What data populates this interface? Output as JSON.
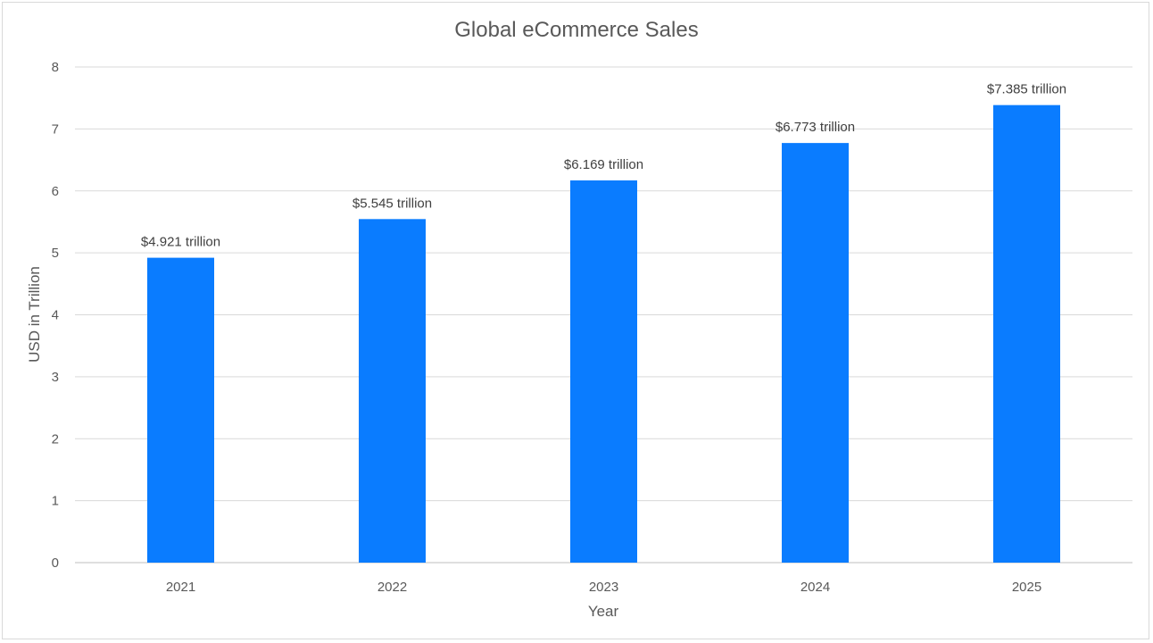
{
  "chart_data": {
    "type": "bar",
    "title": "Global eCommerce Sales",
    "xlabel": "Year",
    "ylabel": "USD in Trillion",
    "categories": [
      "2021",
      "2022",
      "2023",
      "2024",
      "2025"
    ],
    "values": [
      4.921,
      5.545,
      6.169,
      6.773,
      7.385
    ],
    "data_labels": [
      "$4.921 trillion",
      "$5.545 trillion",
      "$6.169 trillion",
      "$6.773 trillion",
      "$7.385 trillion"
    ],
    "ylim": [
      0,
      8
    ],
    "yticks": [
      "0",
      "1",
      "2",
      "3",
      "4",
      "5",
      "6",
      "7",
      "8"
    ],
    "grid": true,
    "bar_color": "#0A7CFF"
  }
}
